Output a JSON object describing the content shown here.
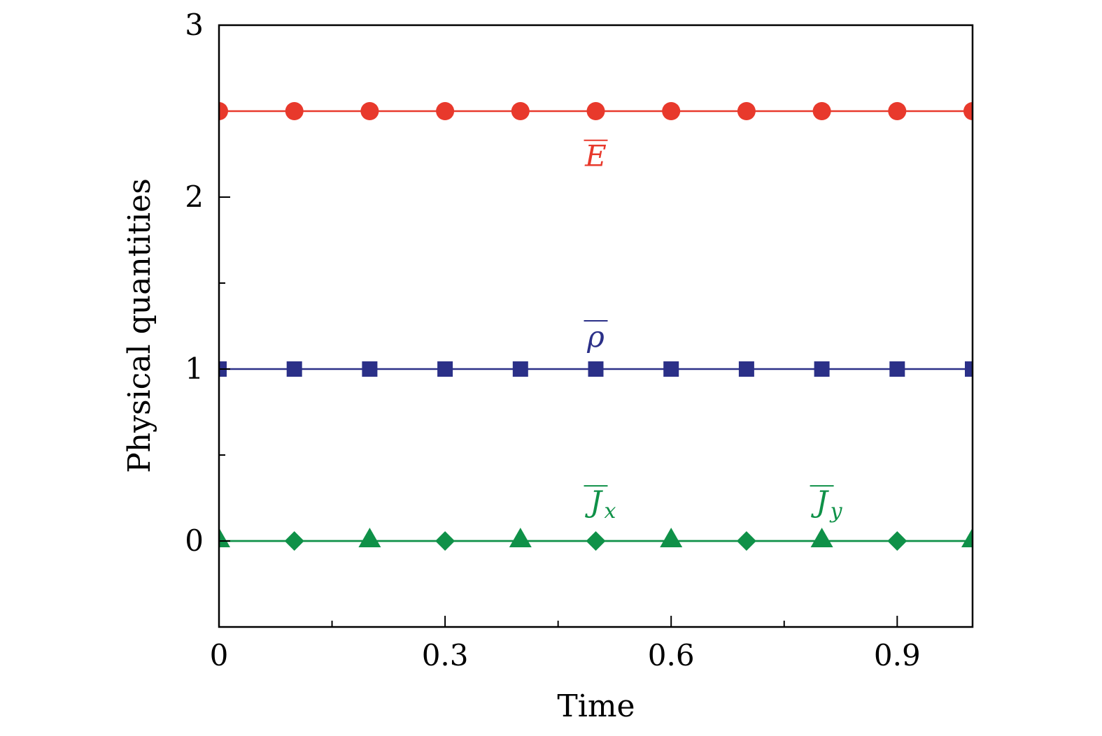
{
  "chart_data": {
    "type": "line",
    "xlabel": "Time",
    "ylabel": "Physical quantities",
    "xlim": [
      0,
      1
    ],
    "ylim": [
      -0.5,
      3
    ],
    "x_ticks": [
      0,
      0.3,
      0.6,
      0.9
    ],
    "x_tick_labels": [
      "0",
      "0.3",
      "0.6",
      "0.9"
    ],
    "x_minor_ticks": [
      0.15,
      0.45,
      0.75
    ],
    "y_ticks": [
      0,
      1,
      2,
      3
    ],
    "y_tick_labels": [
      "0",
      "1",
      "2",
      "3"
    ],
    "y_minor_ticks": [
      0.5,
      1.5
    ],
    "grid": false,
    "legend": "none",
    "x": [
      0,
      0.1,
      0.2,
      0.3,
      0.4,
      0.5,
      0.6,
      0.7,
      0.8,
      0.9,
      1.0
    ],
    "series": [
      {
        "label_main": "E",
        "label_sub": "",
        "overbar": true,
        "label_x": 0.5,
        "label_y": 2.18,
        "color": "#e8392c",
        "marker": "circle",
        "x": [
          0,
          0.1,
          0.2,
          0.3,
          0.4,
          0.5,
          0.6,
          0.7,
          0.8,
          0.9,
          1.0
        ],
        "values": [
          2.5,
          2.5,
          2.5,
          2.5,
          2.5,
          2.5,
          2.5,
          2.5,
          2.5,
          2.5,
          2.5
        ]
      },
      {
        "label_main": "ρ",
        "label_sub": "",
        "overbar": true,
        "label_x": 0.5,
        "label_y": 1.13,
        "color": "#2b3088",
        "marker": "square",
        "x": [
          0,
          0.1,
          0.2,
          0.3,
          0.4,
          0.5,
          0.6,
          0.7,
          0.8,
          0.9,
          1.0
        ],
        "values": [
          1,
          1,
          1,
          1,
          1,
          1,
          1,
          1,
          1,
          1,
          1
        ]
      },
      {
        "label_main": "J",
        "label_sub": "x",
        "overbar": true,
        "label_x": 0.5,
        "label_y": 0.17,
        "color": "#0f9148",
        "marker": "diamond",
        "x": [
          0.1,
          0.3,
          0.5,
          0.7,
          0.9
        ],
        "values": [
          0,
          0,
          0,
          0,
          0
        ]
      },
      {
        "label_main": "J",
        "label_sub": "y",
        "overbar": true,
        "label_x": 0.8,
        "label_y": 0.17,
        "color": "#0f9148",
        "marker": "triangle",
        "x": [
          0,
          0.2,
          0.4,
          0.6,
          0.8,
          1.0
        ],
        "values": [
          0,
          0,
          0,
          0,
          0,
          0
        ]
      }
    ]
  }
}
